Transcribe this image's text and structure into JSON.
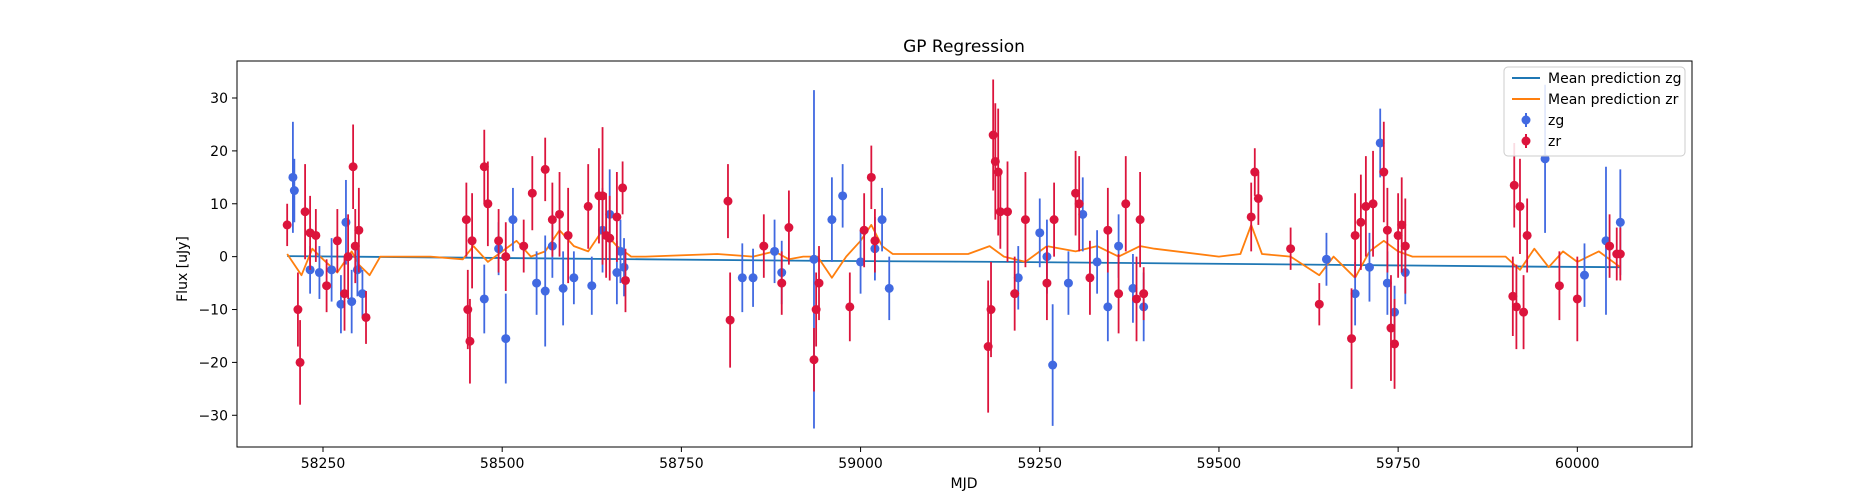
{
  "chart_data": {
    "type": "scatter",
    "title": "GP Regression",
    "xlabel": "MJD",
    "ylabel": "Flux [uJy]",
    "xlim": [
      58130,
      60160
    ],
    "ylim": [
      -36,
      37
    ],
    "x_ticks": [
      58250,
      58500,
      58750,
      59000,
      59250,
      59500,
      59750,
      60000
    ],
    "y_ticks": [
      -30,
      -20,
      -10,
      0,
      10,
      20,
      30
    ],
    "grid": false,
    "legend": "top-right",
    "series": [
      {
        "name": "Mean prediction zg",
        "kind": "line",
        "color": "#1f77b4",
        "x": [
          58200,
          58450,
          58700,
          58950,
          59200,
          59450,
          59700,
          59950,
          60060
        ],
        "y": [
          0.1,
          -0.2,
          -0.5,
          -0.8,
          -1.0,
          -1.3,
          -1.6,
          -1.9,
          -2.0
        ]
      },
      {
        "name": "Mean prediction zr",
        "kind": "line",
        "color": "#ff7f0e",
        "x": [
          58200,
          58220,
          58235,
          58250,
          58270,
          58290,
          58300,
          58315,
          58330,
          58400,
          58445,
          58460,
          58480,
          58500,
          58520,
          58540,
          58560,
          58580,
          58600,
          58620,
          58640,
          58660,
          58680,
          58700,
          58800,
          58850,
          58880,
          58900,
          58920,
          58940,
          58960,
          58980,
          59000,
          59015,
          59030,
          59045,
          59060,
          59150,
          59180,
          59200,
          59230,
          59260,
          59300,
          59330,
          59360,
          59390,
          59410,
          59500,
          59530,
          59545,
          59560,
          59600,
          59640,
          59660,
          59690,
          59710,
          59730,
          59750,
          59770,
          59800,
          59900,
          59920,
          59940,
          59960,
          59980,
          60000,
          60030,
          60060
        ],
        "y": [
          0.5,
          -3.5,
          1.5,
          -0.5,
          -3.0,
          1.0,
          -1.5,
          -3.5,
          0.0,
          0.0,
          -0.5,
          2.0,
          -1.0,
          1.0,
          3.0,
          0.0,
          1.0,
          5.0,
          2.0,
          1.0,
          5.0,
          2.0,
          0.0,
          0.0,
          0.5,
          0.0,
          1.0,
          -0.5,
          0.0,
          0.0,
          -4.0,
          0.0,
          3.0,
          6.0,
          2.0,
          0.5,
          0.5,
          0.5,
          2.0,
          0.0,
          -1.0,
          2.0,
          1.0,
          2.0,
          0.0,
          2.0,
          1.5,
          0.0,
          0.5,
          6.0,
          0.5,
          0.0,
          -3.5,
          0.0,
          -4.0,
          1.0,
          3.0,
          1.0,
          0.0,
          0.0,
          0.0,
          -2.5,
          1.5,
          -2.0,
          1.0,
          -1.0,
          1.0,
          -2.0
        ]
      },
      {
        "name": "zg",
        "kind": "errorbar",
        "color": "#4169e1",
        "x": [
          58208,
          58210,
          58232,
          58245,
          58262,
          58275,
          58282,
          58290,
          58298,
          58305,
          58475,
          58495,
          58505,
          58515,
          58548,
          58560,
          58570,
          58585,
          58600,
          58625,
          58640,
          58650,
          58660,
          58665,
          58670,
          58835,
          58850,
          58880,
          58890,
          58935,
          58960,
          58975,
          59000,
          59020,
          59030,
          59040,
          59220,
          59250,
          59260,
          59268,
          59290,
          59310,
          59330,
          59345,
          59360,
          59380,
          59395,
          59650,
          59690,
          59710,
          59725,
          59735,
          59745,
          59760,
          59955,
          60010,
          60040,
          60060
        ],
        "y": [
          15.0,
          12.5,
          -2.5,
          -3.0,
          -2.5,
          -9.0,
          6.5,
          -8.5,
          -2.5,
          -7.0,
          -8.0,
          1.5,
          -15.5,
          7.0,
          -5.0,
          -6.5,
          2.0,
          -6.0,
          -4.0,
          -5.5,
          5.0,
          8.0,
          -3.0,
          1.0,
          -2.0,
          -4.0,
          -4.0,
          1.0,
          -3.0,
          -0.5,
          7.0,
          11.5,
          -1.0,
          1.5,
          7.0,
          -6.0,
          -4.0,
          4.5,
          0.0,
          -20.5,
          -5.0,
          8.0,
          -1.0,
          -9.5,
          2.0,
          -6.0,
          -9.5,
          -0.5,
          -7.0,
          -2.0,
          21.5,
          -5.0,
          -10.5,
          -3.0,
          18.5,
          -3.5,
          3.0,
          6.5
        ],
        "err": [
          10.5,
          6.0,
          4.5,
          5.0,
          6.0,
          5.5,
          8.0,
          6.0,
          5.0,
          4.5,
          6.5,
          5.0,
          8.5,
          6.0,
          6.0,
          10.5,
          6.0,
          7.0,
          5.0,
          5.5,
          8.0,
          8.5,
          6.0,
          6.0,
          5.5,
          6.5,
          5.5,
          6.0,
          6.0,
          32.0,
          8.0,
          6.0,
          6.0,
          6.0,
          6.0,
          6.0,
          6.0,
          6.5,
          7.0,
          11.5,
          6.0,
          7.0,
          6.0,
          6.5,
          6.0,
          6.5,
          6.5,
          5.0,
          6.0,
          6.5,
          6.5,
          6.0,
          5.0,
          6.0,
          14.0,
          6.0,
          14.0,
          10.0
        ]
      },
      {
        "name": "zr",
        "kind": "errorbar",
        "color": "#dc143c",
        "x": [
          58200,
          58215,
          58218,
          58225,
          58232,
          58240,
          58255,
          58270,
          58280,
          58285,
          58292,
          58295,
          58300,
          58310,
          58450,
          58452,
          58455,
          58458,
          58475,
          58480,
          58495,
          58505,
          58530,
          58542,
          58560,
          58570,
          58580,
          58592,
          58620,
          58635,
          58640,
          58645,
          58650,
          58660,
          58668,
          58672,
          58815,
          58818,
          58865,
          58890,
          58900,
          58935,
          58938,
          58942,
          58985,
          59005,
          59015,
          59020,
          59178,
          59182,
          59185,
          59188,
          59192,
          59195,
          59205,
          59215,
          59230,
          59260,
          59270,
          59300,
          59305,
          59320,
          59345,
          59360,
          59370,
          59385,
          59390,
          59395,
          59545,
          59550,
          59555,
          59600,
          59640,
          59685,
          59690,
          59698,
          59705,
          59715,
          59730,
          59735,
          59740,
          59745,
          59750,
          59755,
          59760,
          59910,
          59912,
          59915,
          59920,
          59925,
          59930,
          59975,
          60000,
          60045,
          60055,
          60060
        ],
        "y": [
          6.0,
          -10.0,
          -20.0,
          8.5,
          4.5,
          4.0,
          -5.5,
          3.0,
          -7.0,
          0.0,
          17.0,
          2.0,
          5.0,
          -11.5,
          7.0,
          -10.0,
          -16.0,
          3.0,
          17.0,
          10.0,
          3.0,
          0.0,
          2.0,
          12.0,
          16.5,
          7.0,
          8.0,
          4.0,
          9.5,
          11.5,
          11.5,
          4.0,
          3.5,
          7.5,
          13.0,
          -4.5,
          10.5,
          -12.0,
          2.0,
          -5.0,
          5.5,
          -19.5,
          -10.0,
          -5.0,
          -9.5,
          5.0,
          15.0,
          3.0,
          -17.0,
          -10.0,
          23.0,
          18.0,
          16.0,
          8.5,
          8.5,
          -7.0,
          7.0,
          -5.0,
          7.0,
          12.0,
          10.0,
          -4.0,
          5.0,
          -7.0,
          10.0,
          -8.0,
          7.0,
          -7.0,
          7.5,
          16.0,
          11.0,
          1.5,
          -9.0,
          -15.5,
          4.0,
          6.5,
          9.5,
          10.0,
          16.0,
          5.0,
          -13.5,
          -16.5,
          4.0,
          6.0,
          2.0,
          -7.5,
          13.5,
          -9.5,
          9.5,
          -10.5,
          4.0,
          -5.5,
          -8.0,
          2.0,
          0.5,
          0.5
        ],
        "err": [
          4.0,
          7.0,
          8.0,
          9.0,
          7.0,
          5.0,
          5.0,
          6.0,
          7.0,
          8.0,
          8.0,
          7.0,
          8.0,
          5.0,
          7.0,
          7.5,
          8.0,
          9.0,
          7.0,
          8.0,
          6.0,
          6.5,
          5.0,
          7.0,
          6.0,
          7.0,
          8.0,
          9.0,
          8.0,
          9.0,
          13.0,
          8.0,
          8.0,
          8.5,
          5.0,
          6.0,
          7.0,
          9.0,
          6.0,
          6.0,
          7.0,
          6.0,
          7.0,
          7.0,
          6.5,
          7.0,
          6.0,
          6.0,
          12.5,
          9.0,
          10.5,
          11.0,
          12.0,
          7.0,
          9.5,
          7.0,
          9.0,
          7.0,
          7.0,
          8.0,
          9.0,
          7.0,
          8.0,
          7.5,
          9.0,
          8.0,
          9.0,
          5.0,
          6.5,
          4.5,
          5.0,
          4.0,
          4.0,
          9.5,
          8.0,
          9.0,
          9.5,
          10.0,
          9.5,
          8.0,
          10.0,
          8.5,
          8.0,
          9.0,
          9.0,
          7.5,
          8.0,
          8.0,
          9.0,
          7.0,
          7.0,
          6.5,
          8.0,
          6.0,
          5.0,
          5.0
        ]
      }
    ]
  }
}
